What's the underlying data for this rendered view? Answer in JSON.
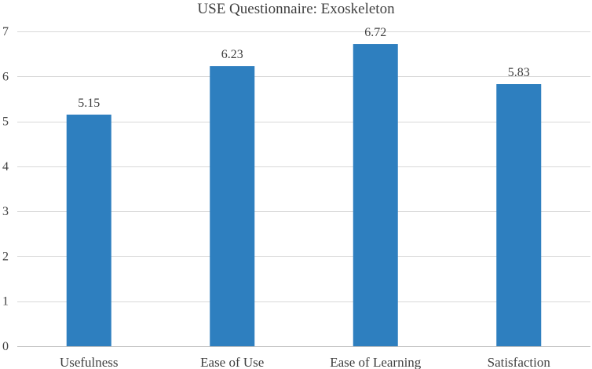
{
  "chart_data": {
    "type": "bar",
    "title": "USE Questionnaire: Exoskeleton",
    "categories": [
      "Usefulness",
      "Ease of Use",
      "Ease of Learning",
      "Satisfaction"
    ],
    "values": [
      5.15,
      6.23,
      6.72,
      5.83
    ],
    "data_labels": [
      "5.15",
      "6.23",
      "6.72",
      "5.83"
    ],
    "ylim": [
      0,
      7
    ],
    "yticks": [
      0,
      1,
      2,
      3,
      4,
      5,
      6,
      7
    ],
    "xlabel": "",
    "ylabel": "",
    "grid": true,
    "legend": "none",
    "bar_color": "#2e7fbf"
  }
}
